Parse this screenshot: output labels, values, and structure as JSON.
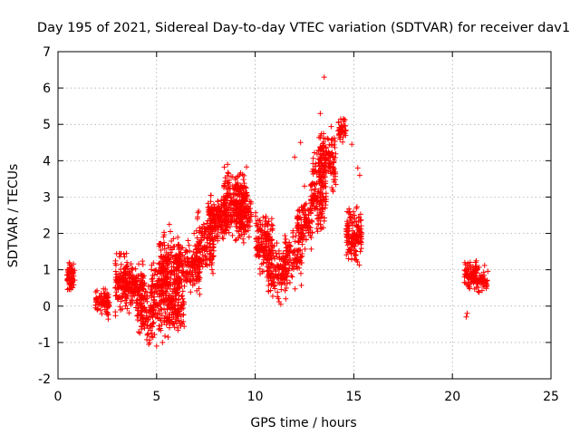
{
  "chart_data": {
    "type": "scatter",
    "title": "Day 195 of 2021, Sidereal Day-to-day VTEC variation (SDTVAR) for receiver dav1",
    "xlabel": "GPS time / hours",
    "ylabel": "SDTVAR / TECUs",
    "xlim": [
      0,
      25
    ],
    "ylim": [
      -2,
      7
    ],
    "xticks": [
      "0",
      "5",
      "10",
      "15",
      "20",
      "25"
    ],
    "yticks": [
      "-2",
      "-1",
      "0",
      "1",
      "2",
      "3",
      "4",
      "5",
      "6",
      "7"
    ],
    "grid": true,
    "marker": "+",
    "color": "#ff0000",
    "clusters": [
      {
        "x0": 0.45,
        "x1": 0.85,
        "ymin": 0.3,
        "ymax": 1.3,
        "n": 60
      },
      {
        "x0": 1.9,
        "x1": 2.6,
        "ymin": -0.4,
        "ymax": 0.6,
        "n": 80
      },
      {
        "x0": 2.9,
        "x1": 3.5,
        "ymin": -0.5,
        "ymax": 1.8,
        "n": 110
      },
      {
        "x0": 3.4,
        "x1": 4.4,
        "ymin": -0.3,
        "ymax": 1.4,
        "n": 160
      },
      {
        "x0": 4.0,
        "x1": 4.9,
        "ymin": -1.2,
        "ymax": 0.8,
        "n": 110
      },
      {
        "x0": 4.7,
        "x1": 5.6,
        "ymin": -1.1,
        "ymax": 1.9,
        "n": 160
      },
      {
        "x0": 5.1,
        "x1": 6.2,
        "ymin": -0.6,
        "ymax": 2.5,
        "n": 180
      },
      {
        "x0": 5.6,
        "x1": 6.4,
        "ymin": -0.9,
        "ymax": 0.7,
        "n": 90
      },
      {
        "x0": 6.0,
        "x1": 7.2,
        "ymin": 0.2,
        "ymax": 1.9,
        "n": 170
      },
      {
        "x0": 7.0,
        "x1": 7.9,
        "ymin": 0.6,
        "ymax": 2.9,
        "n": 140
      },
      {
        "x0": 7.6,
        "x1": 8.6,
        "ymin": 1.6,
        "ymax": 3.2,
        "n": 170
      },
      {
        "x0": 8.4,
        "x1": 9.6,
        "ymin": 1.7,
        "ymax": 4.0,
        "n": 240
      },
      {
        "x0": 9.0,
        "x1": 9.8,
        "ymin": 1.5,
        "ymax": 3.4,
        "n": 110
      },
      {
        "x0": 10.0,
        "x1": 10.9,
        "ymin": 0.7,
        "ymax": 2.9,
        "n": 150
      },
      {
        "x0": 10.6,
        "x1": 11.6,
        "ymin": 0.0,
        "ymax": 2.0,
        "n": 140
      },
      {
        "x0": 11.5,
        "x1": 12.4,
        "ymin": 0.3,
        "ymax": 2.5,
        "n": 100
      },
      {
        "x0": 12.1,
        "x1": 12.9,
        "ymin": 1.4,
        "ymax": 3.2,
        "n": 110
      },
      {
        "x0": 12.8,
        "x1": 13.6,
        "ymin": 1.6,
        "ymax": 4.6,
        "n": 150
      },
      {
        "x0": 13.2,
        "x1": 14.1,
        "ymin": 2.8,
        "ymax": 5.1,
        "n": 140
      },
      {
        "x0": 14.2,
        "x1": 14.6,
        "ymin": 4.4,
        "ymax": 5.3,
        "n": 40
      },
      {
        "x0": 14.6,
        "x1": 15.4,
        "ymin": 0.9,
        "ymax": 3.0,
        "n": 150
      },
      {
        "x0": 20.6,
        "x1": 21.3,
        "ymin": 0.3,
        "ymax": 1.4,
        "n": 100
      },
      {
        "x0": 21.2,
        "x1": 21.8,
        "ymin": 0.2,
        "ymax": 1.2,
        "n": 50
      }
    ],
    "outliers": [
      {
        "x": 13.5,
        "y": 6.3
      },
      {
        "x": 13.3,
        "y": 5.3
      },
      {
        "x": 15.2,
        "y": 3.8
      },
      {
        "x": 15.3,
        "y": 3.6
      },
      {
        "x": 14.9,
        "y": 4.45
      },
      {
        "x": 12.0,
        "y": 4.1
      },
      {
        "x": 12.3,
        "y": 4.5
      },
      {
        "x": 8.6,
        "y": 3.9
      },
      {
        "x": 20.7,
        "y": -0.3
      },
      {
        "x": 20.75,
        "y": -0.2
      },
      {
        "x": 5.0,
        "y": -1.1
      },
      {
        "x": 5.3,
        "y": -1.0
      },
      {
        "x": 4.6,
        "y": -1.05
      },
      {
        "x": 11.3,
        "y": 0.05
      },
      {
        "x": 12.5,
        "y": 3.3
      },
      {
        "x": 6.9,
        "y": 2.0
      }
    ]
  }
}
